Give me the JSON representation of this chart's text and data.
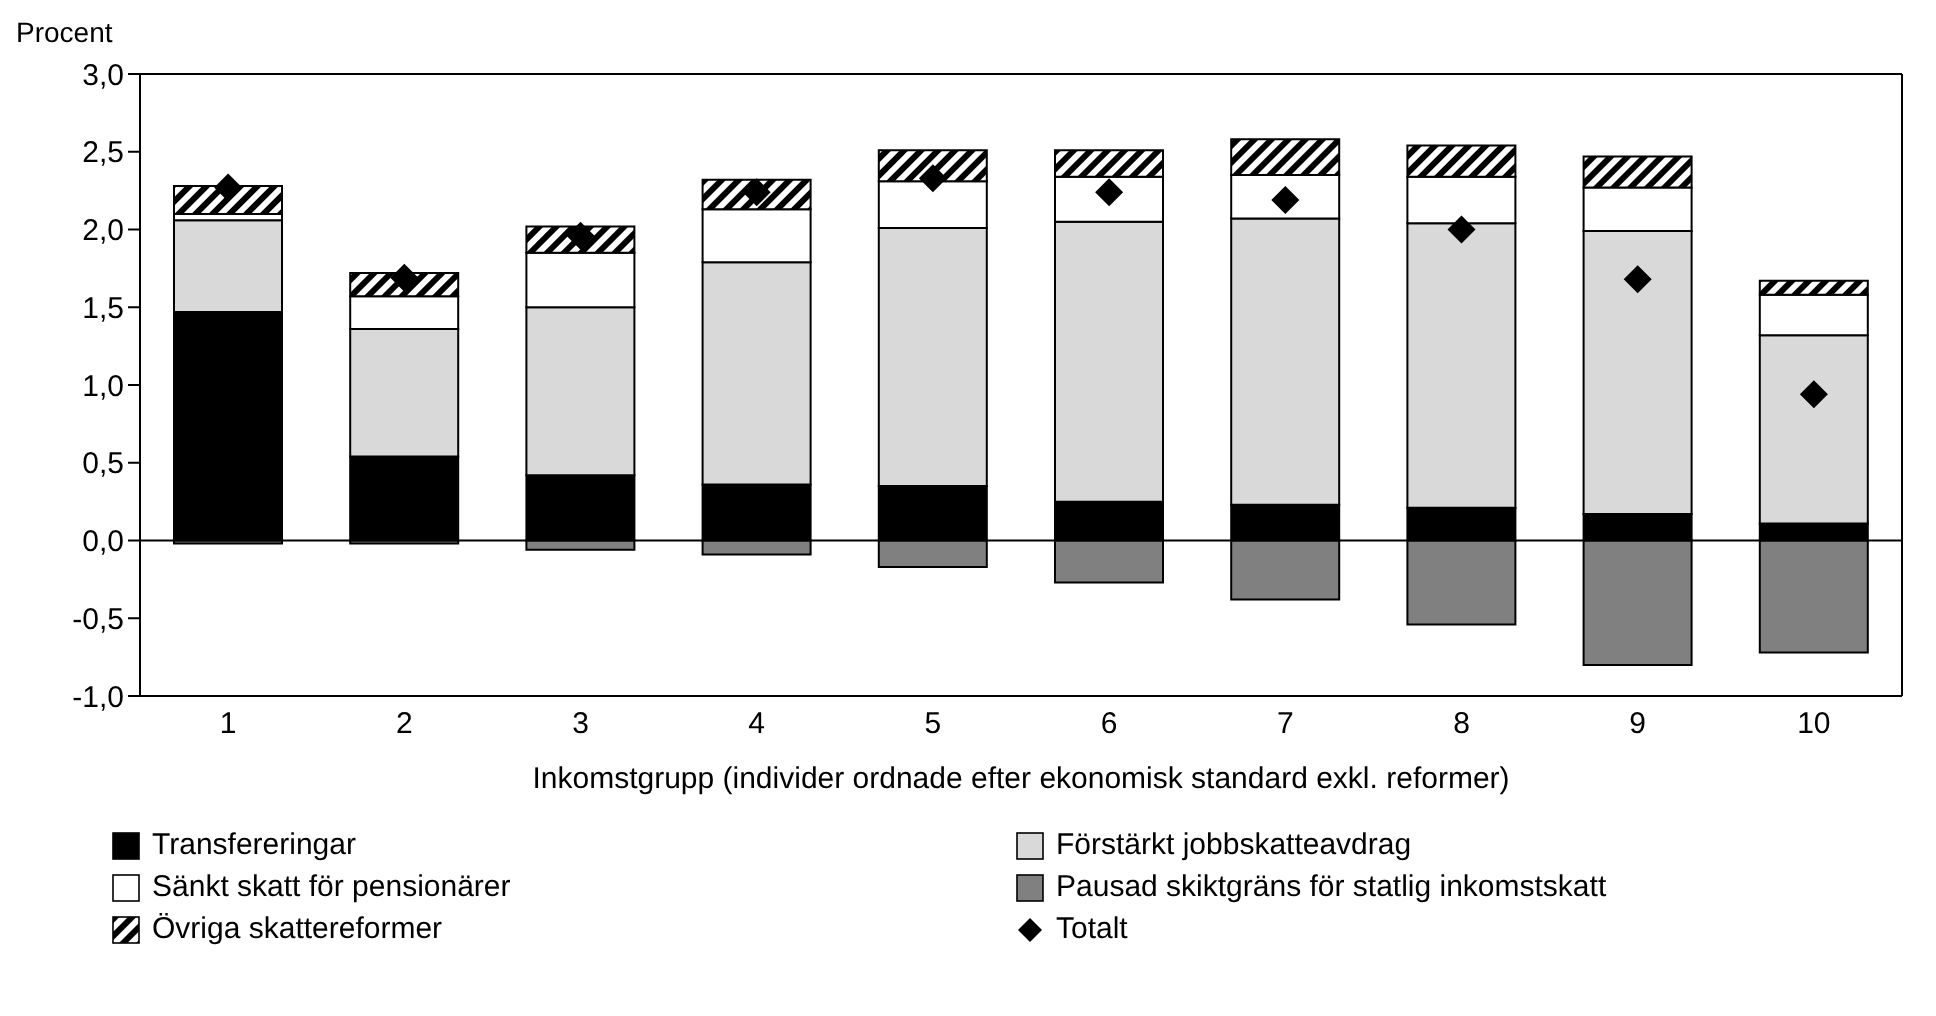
{
  "chart_data": {
    "type": "bar",
    "stacked": true,
    "ylabel": "Procent",
    "xlabel": "Inkomstgrupp (individer ordnade efter ekonomisk standard exkl. reformer)",
    "categories": [
      "1",
      "2",
      "3",
      "4",
      "5",
      "6",
      "7",
      "8",
      "9",
      "10"
    ],
    "series": [
      {
        "name": "Transfereringar",
        "color": "#000000",
        "values": [
          1.47,
          0.54,
          0.42,
          0.36,
          0.35,
          0.25,
          0.23,
          0.21,
          0.17,
          0.11
        ]
      },
      {
        "name": "Förstärkt jobbskatteavdrag",
        "color": "#d9d9d9",
        "values": [
          0.59,
          0.82,
          1.08,
          1.43,
          1.66,
          1.8,
          1.84,
          1.83,
          1.82,
          1.21
        ]
      },
      {
        "name": "Sänkt skatt för pensionärer",
        "color": "#ffffff",
        "values": [
          0.04,
          0.21,
          0.35,
          0.34,
          0.3,
          0.29,
          0.28,
          0.3,
          0.28,
          0.26
        ]
      },
      {
        "name": "Pausad skiktgräns för statlig inkomstskatt",
        "color": "#808080",
        "values": [
          -0.02,
          -0.02,
          -0.06,
          -0.09,
          -0.17,
          -0.27,
          -0.38,
          -0.54,
          -0.8,
          -0.72
        ]
      },
      {
        "name": "Övriga skattereformer",
        "color": "#000000",
        "values": [
          0.18,
          0.15,
          0.17,
          0.19,
          0.2,
          0.17,
          0.23,
          0.2,
          0.2,
          0.09
        ]
      },
      {
        "name": "Totalt",
        "type": "scatter",
        "marker": "diamond",
        "color": "#000000",
        "values": [
          2.27,
          1.69,
          1.96,
          2.24,
          2.33,
          2.24,
          2.19,
          2.0,
          1.68,
          0.94
        ]
      }
    ],
    "ylim": [
      -1,
      3
    ],
    "yticks": [
      {
        "value": -1,
        "label": "-1,0"
      },
      {
        "value": -0.5,
        "label": "-0,5"
      },
      {
        "value": 0,
        "label": "0,0"
      },
      {
        "value": 0.5,
        "label": "0,5"
      },
      {
        "value": 1,
        "label": "1,0"
      },
      {
        "value": 1.5,
        "label": "1,5"
      },
      {
        "value": 2,
        "label": "2,0"
      },
      {
        "value": 2.5,
        "label": "2,5"
      },
      {
        "value": 3,
        "label": "3,0"
      }
    ],
    "ref_lines": [
      {
        "axis": "y",
        "value": 0,
        "color": "#000000"
      }
    ],
    "grid": false,
    "legend": "bottom"
  }
}
